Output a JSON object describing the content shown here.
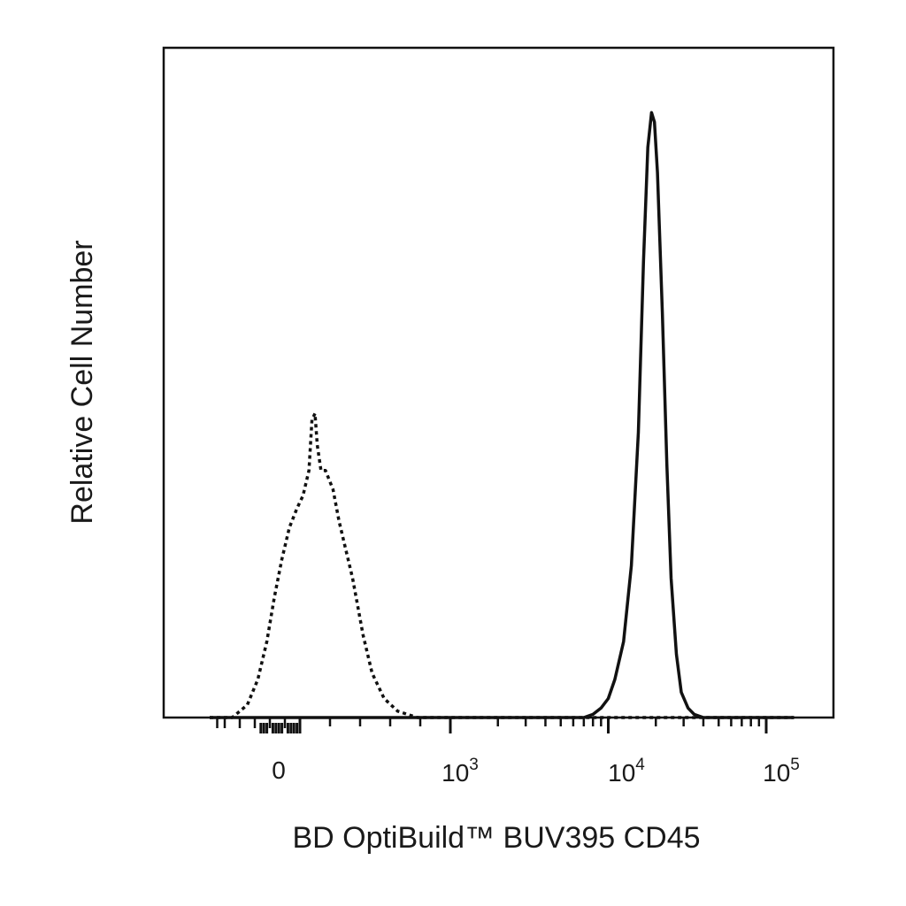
{
  "chart_data": {
    "type": "line",
    "xlabel": "BD OptiBuild™ BUV395 CD45",
    "ylabel": "Relative Cell Number",
    "x_scale": "biexponential",
    "xlim": [
      -600,
      150000
    ],
    "ylim": [
      0,
      100
    ],
    "grid": false,
    "legend": "none",
    "x_tick_labels": [
      {
        "value": 0,
        "base": "0",
        "exp": ""
      },
      {
        "value": 1000,
        "base": "10",
        "exp": "3"
      },
      {
        "value": 10000,
        "base": "10",
        "exp": "4"
      },
      {
        "value": 100000,
        "base": "10",
        "exp": "5"
      }
    ],
    "series": [
      {
        "style": "dotted",
        "color": "#111111",
        "points": [
          [
            -450,
            0
          ],
          [
            -350,
            2
          ],
          [
            -280,
            6
          ],
          [
            -220,
            12
          ],
          [
            -170,
            19
          ],
          [
            -120,
            25
          ],
          [
            -70,
            30
          ],
          [
            -20,
            33
          ],
          [
            20,
            35
          ],
          [
            60,
            39
          ],
          [
            80,
            47
          ],
          [
            100,
            48
          ],
          [
            115,
            43
          ],
          [
            140,
            39
          ],
          [
            170,
            39
          ],
          [
            220,
            36
          ],
          [
            260,
            31
          ],
          [
            300,
            27
          ],
          [
            350,
            22
          ],
          [
            420,
            13
          ],
          [
            480,
            7
          ],
          [
            560,
            3
          ],
          [
            650,
            1
          ],
          [
            780,
            0
          ]
        ]
      },
      {
        "style": "solid",
        "color": "#111111",
        "points": [
          [
            7000,
            0
          ],
          [
            8000,
            0.5
          ],
          [
            9000,
            1.5
          ],
          [
            10000,
            3
          ],
          [
            11000,
            6
          ],
          [
            12500,
            12
          ],
          [
            14000,
            24
          ],
          [
            15500,
            45
          ],
          [
            16700,
            72
          ],
          [
            17800,
            90
          ],
          [
            18800,
            95.5
          ],
          [
            19600,
            94
          ],
          [
            20500,
            86
          ],
          [
            22000,
            64
          ],
          [
            23500,
            40
          ],
          [
            25000,
            22
          ],
          [
            27000,
            10
          ],
          [
            29000,
            4
          ],
          [
            32000,
            1.5
          ],
          [
            35000,
            0.5
          ],
          [
            40000,
            0
          ]
        ]
      }
    ]
  }
}
